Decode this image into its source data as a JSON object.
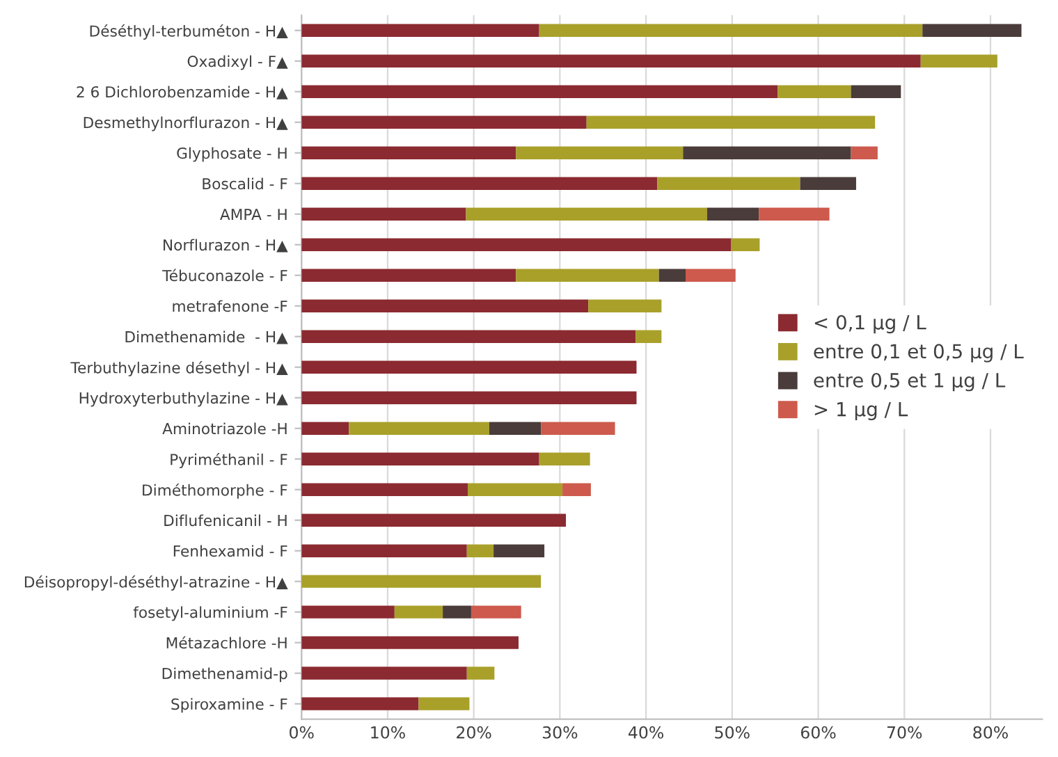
{
  "chart_data": {
    "type": "bar",
    "orientation": "horizontal",
    "stacked": true,
    "categories": [
      "Déséthyl-terbuméton - H▲",
      "Oxadixyl - F▲",
      "2 6 Dichlorobenzamide - H▲",
      "Desmethylnorflurazon - H▲",
      "Glyphosate - H",
      "Boscalid - F",
      "AMPA - H",
      "Norflurazon - H▲",
      "Tébuconazole - F",
      "metrafenone -F",
      "Dimethenamide  - H▲",
      "Terbuthylazine désethyl - H▲",
      "Hydroxyterbuthylazine - H▲",
      "Aminotriazole -H",
      "Pyriméthanil - F",
      "Diméthomorphe - F",
      "Diflufenicanil - H",
      "Fenhexamid - F",
      "Déisopropyl-déséthyl-atrazine - H▲",
      "fosetyl-aluminium -F",
      "Métazachlore -H",
      "Dimethenamid-p",
      "Spiroxamine - F"
    ],
    "series": [
      {
        "name": "< 0,1 µg / L",
        "color": "#8b2a30",
        "values": [
          27.6,
          71.9,
          55.3,
          33.1,
          24.9,
          41.3,
          19.1,
          49.9,
          24.9,
          33.3,
          38.8,
          38.9,
          38.9,
          5.5,
          27.6,
          19.3,
          30.7,
          19.2,
          0,
          10.8,
          25.2,
          19.2,
          13.6
        ]
      },
      {
        "name": "entre 0,1 et 0,5 µg / L",
        "color": "#a9a02a",
        "values": [
          44.5,
          8.9,
          8.5,
          33.5,
          19.4,
          16.6,
          28.0,
          3.3,
          16.6,
          8.5,
          3.0,
          0,
          0,
          16.3,
          5.9,
          11.0,
          0,
          3.1,
          27.8,
          5.6,
          0,
          3.2,
          5.9
        ]
      },
      {
        "name": "entre 0,5 et 1 µg / L",
        "color": "#4a3c3a",
        "values": [
          11.5,
          0,
          5.8,
          0,
          19.5,
          6.5,
          6.0,
          0,
          3.1,
          0,
          0,
          0,
          0,
          6.0,
          0,
          0,
          0,
          5.9,
          0,
          3.3,
          0,
          0,
          0
        ]
      },
      {
        "name": "> 1 µg / L",
        "color": "#cd5a4c",
        "values": [
          0,
          0,
          0,
          0,
          3.1,
          0,
          8.2,
          0,
          5.8,
          0,
          0,
          0,
          0,
          8.6,
          0,
          3.3,
          0,
          0,
          0,
          5.8,
          0,
          0,
          0
        ]
      }
    ],
    "xlim": [
      0,
      86
    ],
    "xticks": [
      {
        "value": 0,
        "label": "0%"
      },
      {
        "value": 10,
        "label": "10%"
      },
      {
        "value": 20,
        "label": "20%"
      },
      {
        "value": 30,
        "label": "30%"
      },
      {
        "value": 40,
        "label": "40%"
      },
      {
        "value": 50,
        "label": "50%"
      },
      {
        "value": 60,
        "label": "60%"
      },
      {
        "value": 70,
        "label": "70%"
      },
      {
        "value": 80,
        "label": "80%"
      }
    ],
    "grid": "x",
    "legend": "right"
  }
}
